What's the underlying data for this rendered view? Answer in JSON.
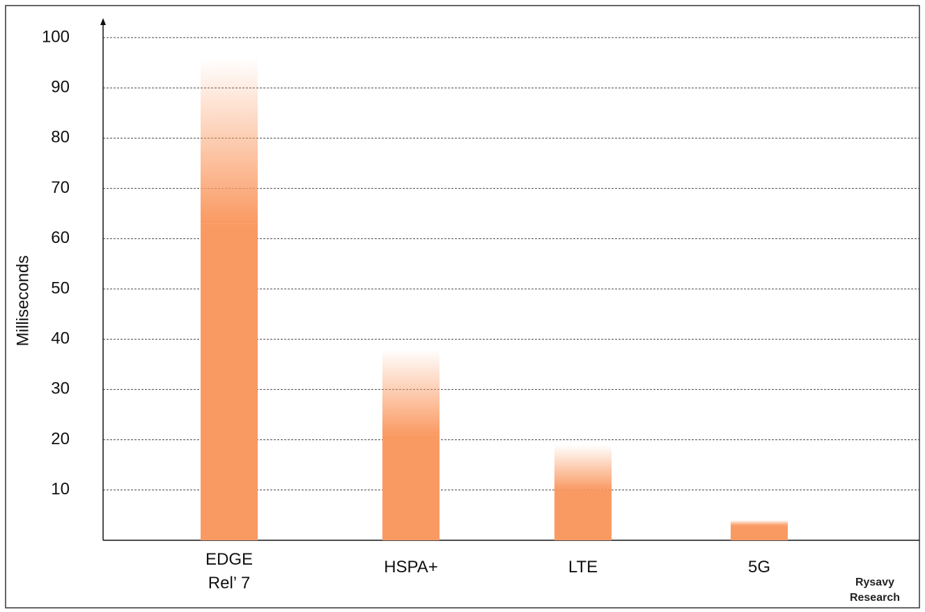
{
  "chart_data": {
    "type": "range-bar",
    "y_label": "Milliseconds",
    "categories": [
      "EDGE\nRel’ 7",
      "HSPA+",
      "LTE",
      "5G"
    ],
    "low": [
      63,
      21,
      10,
      3
    ],
    "high": [
      96,
      38,
      19,
      4
    ],
    "color": "#fa9a63",
    "ylim": [
      0,
      100
    ],
    "yticks": [
      10,
      20,
      30,
      40,
      50,
      60,
      70,
      80,
      90,
      100
    ],
    "grid": true,
    "source": "Rysavy\nResearch"
  }
}
